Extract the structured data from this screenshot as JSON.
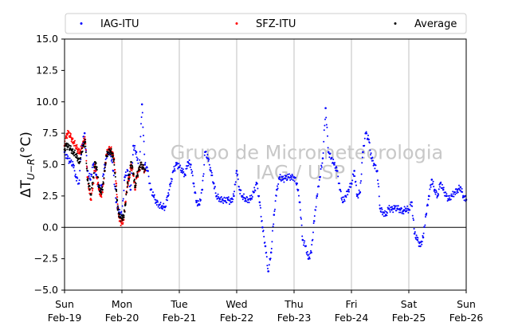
{
  "chart_data": {
    "type": "scatter",
    "title": "",
    "ylabel_main": "ΔT",
    "ylabel_sub": "U−R",
    "ylabel_unit": "(°C)",
    "ylim": [
      -5,
      15
    ],
    "yticks": [
      -5.0,
      -2.5,
      0.0,
      2.5,
      5.0,
      7.5,
      10.0,
      12.5,
      15.0
    ],
    "ytick_labels": [
      "−5.0",
      "−2.5",
      "0.0",
      "2.5",
      "5.0",
      "7.5",
      "10.0",
      "12.5",
      "15.0"
    ],
    "xlim": [
      0,
      7
    ],
    "xticks": [
      {
        "x": 0,
        "line1": "Sun",
        "line2": "Feb-19"
      },
      {
        "x": 1,
        "line1": "Mon",
        "line2": "Feb-20"
      },
      {
        "x": 2,
        "line1": "Tue",
        "line2": "Feb-21"
      },
      {
        "x": 3,
        "line1": "Wed",
        "line2": "Feb-22"
      },
      {
        "x": 4,
        "line1": "Thu",
        "line2": "Feb-23"
      },
      {
        "x": 5,
        "line1": "Fri",
        "line2": "Feb-24"
      },
      {
        "x": 6,
        "line1": "Sat",
        "line2": "Feb-25"
      },
      {
        "x": 7,
        "line1": "Sun",
        "line2": "Feb-26"
      }
    ],
    "grid": "vertical",
    "zero_line": true,
    "legend_position": "top",
    "watermark_line1": "Grupo de Micrometeorologia",
    "watermark_line2": "IAG / USP",
    "series": [
      {
        "name": "IAG-ITU",
        "color": "#0000ff",
        "x": [
          0.0,
          0.05,
          0.1,
          0.15,
          0.2,
          0.25,
          0.3,
          0.35,
          0.4,
          0.45,
          0.5,
          0.55,
          0.6,
          0.65,
          0.7,
          0.75,
          0.8,
          0.85,
          0.9,
          0.95,
          1.0,
          1.05,
          1.1,
          1.15,
          1.2,
          1.25,
          1.3,
          1.35,
          1.4,
          1.45,
          1.5,
          1.55,
          1.6,
          1.65,
          1.7,
          1.75,
          1.8,
          1.85,
          1.9,
          1.95,
          2.0,
          2.05,
          2.1,
          2.15,
          2.2,
          2.25,
          2.3,
          2.35,
          2.4,
          2.45,
          2.5,
          2.55,
          2.6,
          2.65,
          2.7,
          2.75,
          2.8,
          2.85,
          2.9,
          2.95,
          3.0,
          3.05,
          3.1,
          3.15,
          3.2,
          3.25,
          3.3,
          3.35,
          3.4,
          3.45,
          3.5,
          3.55,
          3.6,
          3.65,
          3.7,
          3.75,
          3.8,
          3.85,
          3.9,
          3.95,
          4.0,
          4.05,
          4.1,
          4.15,
          4.2,
          4.25,
          4.3,
          4.35,
          4.4,
          4.45,
          4.5,
          4.55,
          4.6,
          4.65,
          4.7,
          4.75,
          4.8,
          4.85,
          4.9,
          4.95,
          5.0,
          5.05,
          5.1,
          5.15,
          5.2,
          5.25,
          5.3,
          5.35,
          5.4,
          5.45,
          5.5,
          5.55,
          5.6,
          5.65,
          5.7,
          5.75,
          5.8,
          5.85,
          5.9,
          5.95,
          6.0,
          6.05,
          6.1,
          6.15,
          6.2,
          6.25,
          6.3,
          6.35,
          6.4,
          6.45,
          6.5,
          6.55,
          6.6,
          6.65,
          6.7,
          6.75,
          6.8,
          6.85,
          6.9,
          6.95,
          7.0
        ],
        "values": [
          6.0,
          5.5,
          5.2,
          5.0,
          4.0,
          3.5,
          6.5,
          7.5,
          4.5,
          3.8,
          5.0,
          4.2,
          3.0,
          3.3,
          5.0,
          6.0,
          6.0,
          4.5,
          2.0,
          1.2,
          1.0,
          4.0,
          4.5,
          3.0,
          6.5,
          6.0,
          4.5,
          9.8,
          5.0,
          4.5,
          3.0,
          2.5,
          2.0,
          1.8,
          1.7,
          1.6,
          2.5,
          3.5,
          4.5,
          5.0,
          4.8,
          4.5,
          4.2,
          5.2,
          5.0,
          3.5,
          2.0,
          1.8,
          3.0,
          6.0,
          5.5,
          4.5,
          3.5,
          2.5,
          2.3,
          2.2,
          2.1,
          2.2,
          2.0,
          2.5,
          4.5,
          3.0,
          2.5,
          2.3,
          2.2,
          2.3,
          2.8,
          3.5,
          2.0,
          0.0,
          -1.5,
          -3.5,
          -2.0,
          1.0,
          3.0,
          4.0,
          3.8,
          3.9,
          4.0,
          4.0,
          4.0,
          3.5,
          2.0,
          -1.0,
          -1.5,
          -2.5,
          -2.0,
          0.5,
          2.5,
          4.0,
          5.5,
          9.5,
          6.0,
          5.5,
          5.0,
          4.5,
          3.0,
          2.0,
          2.5,
          3.0,
          3.5,
          4.5,
          2.5,
          2.8,
          6.0,
          7.5,
          7.0,
          5.5,
          5.0,
          4.5,
          1.5,
          1.2,
          1.0,
          1.5,
          1.4,
          1.5,
          1.5,
          1.4,
          1.3,
          1.5,
          1.4,
          2.0,
          -0.5,
          -1.0,
          -1.5,
          -0.8,
          1.0,
          2.5,
          3.8,
          3.0,
          2.5,
          3.5,
          3.0,
          2.5,
          2.2,
          2.5,
          2.8,
          3.0,
          3.2,
          2.5,
          2.2
        ]
      },
      {
        "name": "SFZ-ITU",
        "color": "#ff0000",
        "x": [
          0.0,
          0.03,
          0.06,
          0.1,
          0.13,
          0.16,
          0.2,
          0.23,
          0.26,
          0.3,
          0.33,
          0.36,
          0.4,
          0.43,
          0.46,
          0.5,
          0.53,
          0.56,
          0.6,
          0.63,
          0.66,
          0.7,
          0.73,
          0.76,
          0.8,
          0.83,
          0.86,
          0.9,
          0.93,
          0.96,
          1.0,
          1.03,
          1.06,
          1.1,
          1.13,
          1.16,
          1.2,
          1.23,
          1.26,
          1.3,
          1.33,
          1.36,
          1.4
        ],
        "values": [
          6.5,
          7.2,
          7.5,
          7.3,
          7.0,
          6.8,
          6.5,
          6.2,
          6.0,
          6.3,
          6.8,
          7.0,
          4.0,
          3.0,
          2.2,
          3.5,
          5.0,
          4.0,
          3.0,
          2.5,
          2.8,
          4.5,
          5.8,
          6.2,
          6.3,
          6.0,
          5.5,
          3.5,
          1.5,
          0.5,
          0.3,
          0.6,
          2.0,
          3.5,
          4.0,
          5.0,
          4.2,
          3.0,
          4.0,
          4.5,
          5.0,
          4.8,
          4.5
        ]
      },
      {
        "name": "Average",
        "color": "#000000",
        "x": [
          0.0,
          0.03,
          0.06,
          0.1,
          0.13,
          0.16,
          0.2,
          0.23,
          0.26,
          0.3,
          0.33,
          0.36,
          0.4,
          0.43,
          0.46,
          0.5,
          0.53,
          0.56,
          0.6,
          0.63,
          0.66,
          0.7,
          0.73,
          0.76,
          0.8,
          0.83,
          0.86,
          0.9,
          0.93,
          0.96,
          1.0,
          1.03,
          1.06,
          1.1,
          1.13,
          1.16,
          1.2,
          1.23,
          1.26,
          1.3,
          1.33,
          1.36,
          1.4
        ],
        "values": [
          6.2,
          6.5,
          6.4,
          6.3,
          6.1,
          6.0,
          5.8,
          5.5,
          5.2,
          6.0,
          6.5,
          6.8,
          3.8,
          3.3,
          2.6,
          4.0,
          5.2,
          4.8,
          3.2,
          2.8,
          3.0,
          4.5,
          5.7,
          6.0,
          6.1,
          5.9,
          5.4,
          3.0,
          1.4,
          0.8,
          0.7,
          0.8,
          1.8,
          3.6,
          4.2,
          5.2,
          4.3,
          3.2,
          4.1,
          4.6,
          5.0,
          4.8,
          4.6
        ]
      }
    ]
  }
}
